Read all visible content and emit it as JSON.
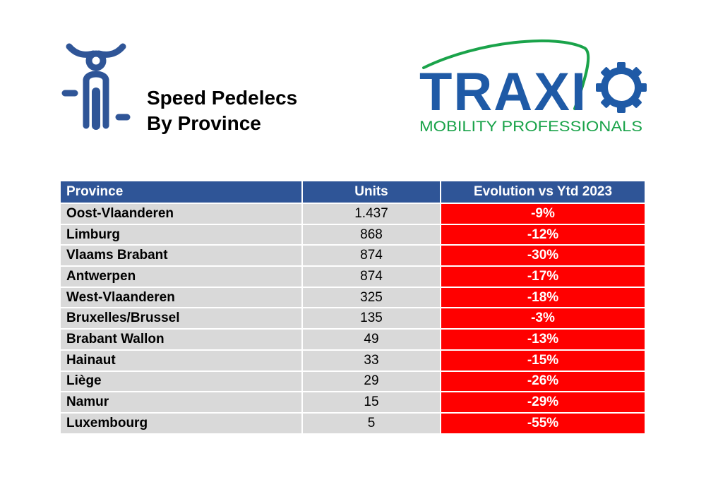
{
  "header": {
    "title_line1": "Speed Pedelecs",
    "title_line2": "By Province",
    "icon": "speed-pedelec-icon",
    "icon_color": "#2f5597"
  },
  "logo": {
    "brand": "TRAXIO",
    "tagline": "MOBILITY PROFESSIONALS",
    "brand_color": "#1f5aa6",
    "accent_color": "#1aa34a"
  },
  "table": {
    "headers": {
      "province": "Province",
      "units": "Units",
      "evolution": "Evolution vs Ytd 2023"
    },
    "colors": {
      "header_bg": "#2f5597",
      "row_bg": "#d9d9d9",
      "negative_bg": "#ff0000"
    },
    "rows": [
      {
        "province": "Oost-Vlaanderen",
        "units": "1.437",
        "evolution": "-9%"
      },
      {
        "province": "Limburg",
        "units": "868",
        "evolution": "-12%"
      },
      {
        "province": "Vlaams Brabant",
        "units": "874",
        "evolution": "-30%"
      },
      {
        "province": "Antwerpen",
        "units": "874",
        "evolution": "-17%"
      },
      {
        "province": "West-Vlaanderen",
        "units": "325",
        "evolution": "-18%"
      },
      {
        "province": "Bruxelles/Brussel",
        "units": "135",
        "evolution": "-3%"
      },
      {
        "province": "Brabant Wallon",
        "units": "49",
        "evolution": "-13%"
      },
      {
        "province": "Hainaut",
        "units": "33",
        "evolution": "-15%"
      },
      {
        "province": "Liège",
        "units": "29",
        "evolution": "-26%"
      },
      {
        "province": "Namur",
        "units": "15",
        "evolution": "-29%"
      },
      {
        "province": "Luxembourg",
        "units": "5",
        "evolution": "-55%"
      }
    ]
  }
}
